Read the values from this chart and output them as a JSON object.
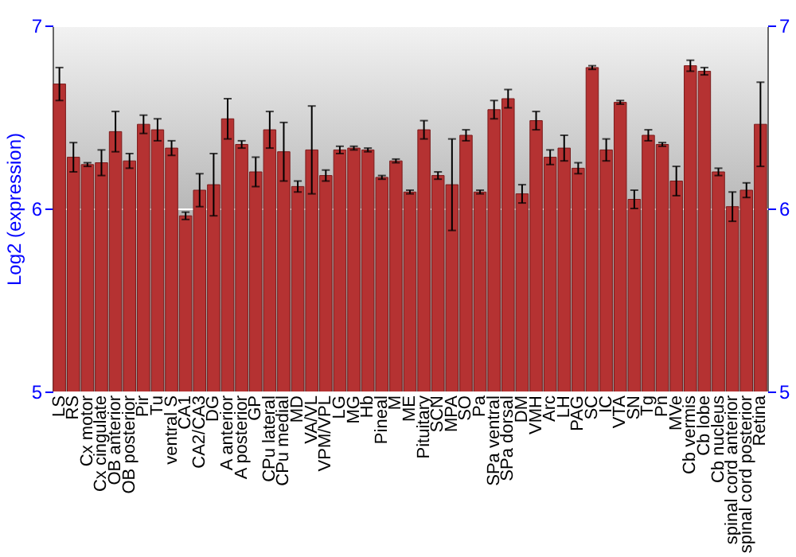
{
  "chart_data": {
    "type": "bar",
    "ylabel": "Log2 (expression)",
    "categories": [
      "LS",
      "RS",
      "Cx motor",
      "Cx cingulate",
      "OB anterior",
      "OB posterior",
      "Pir",
      "Tu",
      "ventral S",
      "CA1",
      "CA2/CA3",
      "DG",
      "A anterior",
      "A posterior",
      "GP",
      "CPu lateral",
      "CPu medial",
      "MD",
      "VA/VL",
      "VPM/VPL",
      "LG",
      "MG",
      "Hb",
      "Pineal",
      "M",
      "ME",
      "Pituitary",
      "SCN",
      "MPA",
      "SO",
      "Pa",
      "SPa ventral",
      "SPa dorsal",
      "DM",
      "VMH",
      "Arc",
      "LH",
      "PAG",
      "SC",
      "IC",
      "VTA",
      "SN",
      "Tg",
      "Pn",
      "MVe",
      "Cb vermis",
      "Cb lobe",
      "Cb nucleus",
      "spinal cord anterior",
      "spinal cord posterior",
      "Retina"
    ],
    "series": [
      {
        "color": "#b53232",
        "values": [
          6.68,
          6.28,
          6.24,
          6.25,
          6.42,
          6.26,
          6.46,
          6.43,
          6.33,
          5.96,
          6.1,
          6.13,
          6.49,
          6.35,
          6.2,
          6.43,
          6.31,
          6.12,
          6.32,
          6.18,
          6.32,
          6.33,
          6.32,
          6.17,
          6.26,
          6.09,
          6.43,
          6.18,
          6.13,
          6.4,
          6.09,
          6.54,
          6.6,
          6.08,
          6.48,
          6.28,
          6.33,
          6.22,
          6.77,
          6.32,
          6.58,
          6.05,
          6.4,
          6.35,
          6.15,
          6.78,
          6.75,
          6.2,
          6.01,
          6.1,
          6.46
        ],
        "errors": [
          0.09,
          0.08,
          0.01,
          0.07,
          0.11,
          0.04,
          0.05,
          0.06,
          0.04,
          0.02,
          0.09,
          0.17,
          0.11,
          0.02,
          0.08,
          0.1,
          0.16,
          0.03,
          0.24,
          0.03,
          0.02,
          0.01,
          0.01,
          0.01,
          0.01,
          0.01,
          0.05,
          0.02,
          0.25,
          0.03,
          0.01,
          0.05,
          0.05,
          0.05,
          0.05,
          0.04,
          0.07,
          0.03,
          0.01,
          0.06,
          0.01,
          0.05,
          0.03,
          0.01,
          0.08,
          0.03,
          0.02,
          0.02,
          0.08,
          0.04,
          0.23
        ]
      }
    ],
    "ylim": [
      5,
      7
    ],
    "yticks": [
      5,
      6,
      7
    ],
    "y2lim": [
      5,
      7
    ],
    "y2ticks": [
      5,
      6,
      7
    ],
    "grid": "y",
    "legend": false
  }
}
